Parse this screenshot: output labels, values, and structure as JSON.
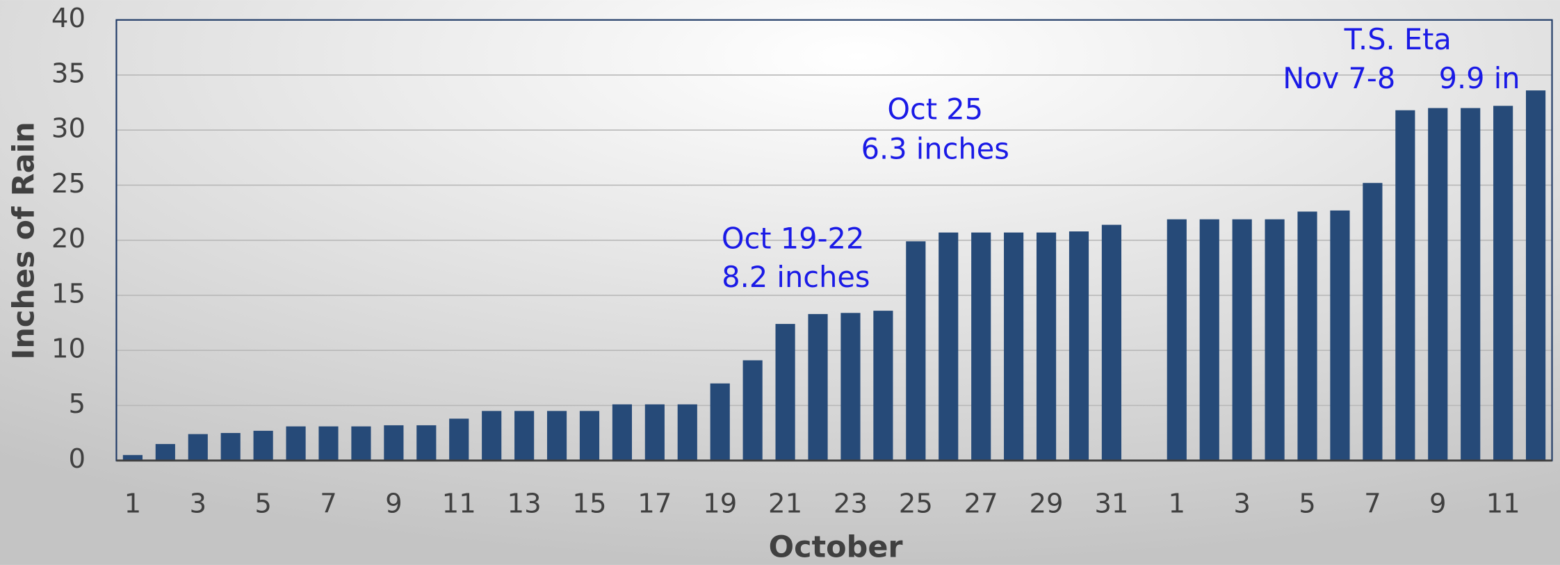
{
  "chart_data": {
    "type": "bar",
    "y_label": "Inches of Rain",
    "x_label": "October",
    "categories": [
      "1",
      null,
      "3",
      null,
      "5",
      null,
      "7",
      null,
      "9",
      null,
      "11",
      null,
      "13",
      null,
      "15",
      null,
      "17",
      null,
      "19",
      null,
      "21",
      null,
      "23",
      null,
      "25",
      null,
      "27",
      null,
      "29",
      null,
      "31",
      null,
      "1",
      null,
      "3",
      null,
      "5",
      null,
      "7",
      null,
      "9",
      null,
      "11",
      null
    ],
    "values": [
      0.5,
      1.5,
      2.4,
      2.5,
      2.7,
      3.1,
      3.1,
      3.1,
      3.2,
      3.2,
      3.8,
      4.5,
      4.5,
      4.5,
      4.5,
      5.1,
      5.1,
      5.1,
      7.0,
      9.1,
      12.4,
      13.3,
      13.4,
      13.6,
      19.9,
      20.7,
      20.7,
      20.7,
      20.7,
      20.8,
      21.4,
      null,
      21.9,
      21.9,
      21.9,
      21.9,
      22.6,
      22.7,
      25.2,
      31.8,
      32.0,
      32.0,
      32.2,
      33.6
    ],
    "color": "#264a78",
    "ylim": [
      0,
      40
    ],
    "yticks": [
      0,
      5,
      10,
      15,
      20,
      25,
      30,
      35,
      40
    ],
    "grid": true,
    "annotations": [
      "Oct 19-22",
      "8.2 inches",
      "Oct 25",
      "6.3 inches",
      "T.S. Eta",
      "Nov 7-8",
      "9.9 in"
    ]
  }
}
